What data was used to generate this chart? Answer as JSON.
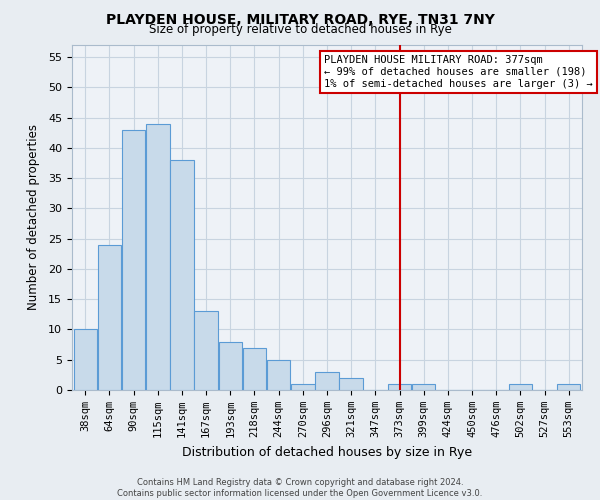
{
  "title": "PLAYDEN HOUSE, MILITARY ROAD, RYE, TN31 7NY",
  "subtitle": "Size of property relative to detached houses in Rye",
  "xlabel": "Distribution of detached houses by size in Rye",
  "ylabel": "Number of detached properties",
  "bar_labels": [
    "38sqm",
    "64sqm",
    "90sqm",
    "115sqm",
    "141sqm",
    "167sqm",
    "193sqm",
    "218sqm",
    "244sqm",
    "270sqm",
    "296sqm",
    "321sqm",
    "347sqm",
    "373sqm",
    "399sqm",
    "424sqm",
    "450sqm",
    "476sqm",
    "502sqm",
    "527sqm",
    "553sqm"
  ],
  "bar_heights": [
    10,
    24,
    43,
    44,
    38,
    13,
    8,
    7,
    5,
    1,
    3,
    2,
    0,
    1,
    1,
    0,
    0,
    0,
    1,
    0,
    1
  ],
  "bar_color": "#c8daea",
  "bar_edge_color": "#5b9bd5",
  "vline_x_idx": 13,
  "vline_color": "#cc0000",
  "annotation_line1": "PLAYDEN HOUSE MILITARY ROAD: 377sqm",
  "annotation_line2": "← 99% of detached houses are smaller (198)",
  "annotation_line3": "1% of semi-detached houses are larger (3) →",
  "annotation_box_color": "#ffffff",
  "annotation_border_color": "#cc0000",
  "ylim": [
    0,
    57
  ],
  "yticks": [
    0,
    5,
    10,
    15,
    20,
    25,
    30,
    35,
    40,
    45,
    50,
    55
  ],
  "footer1": "Contains HM Land Registry data © Crown copyright and database right 2024.",
  "footer2": "Contains public sector information licensed under the Open Government Licence v3.0.",
  "bg_color": "#e8edf2",
  "plot_bg_color": "#eef2f7",
  "grid_color": "#c8d4e0"
}
